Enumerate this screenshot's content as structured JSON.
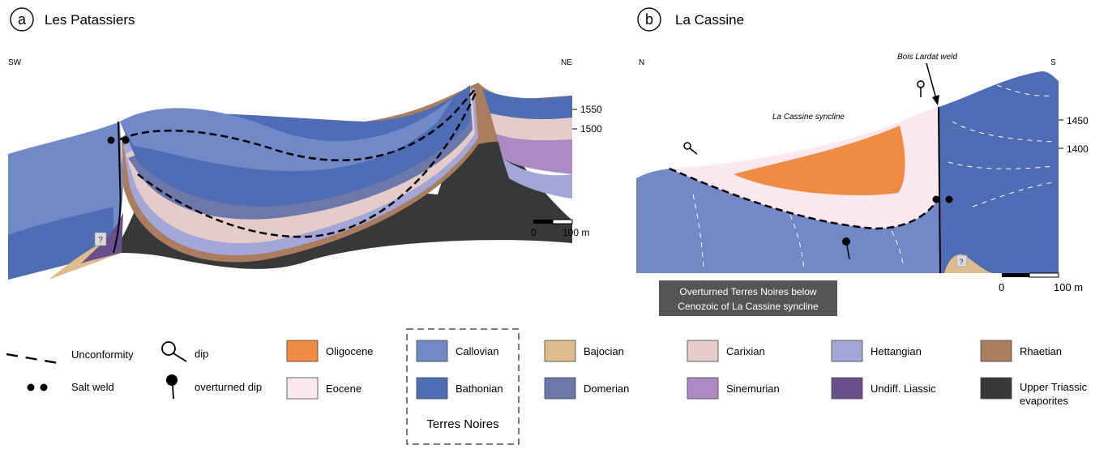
{
  "panel_a": {
    "letter": "a",
    "title": "Les Patassiers",
    "dir_left": "SW",
    "dir_right": "NE",
    "elev_1": "1550",
    "elev_2": "1500",
    "scale_zero": "0",
    "scale_len": "100 m",
    "question": "?"
  },
  "panel_b": {
    "letter": "b",
    "title": "La Cassine",
    "dir_left": "N",
    "dir_right": "S",
    "weld_label": "Bois Lardat weld",
    "syncline_label": "La Cassine syncline",
    "elev_1": "1450",
    "elev_2": "1400",
    "scale_zero": "0",
    "scale_len": "100 m",
    "question": "?",
    "callout_line1": "Overturned Terres Noires below",
    "callout_line2": "Cenozoic of La Cassine syncline"
  },
  "legend": {
    "symbols": {
      "unconformity": "Unconformity",
      "salt_weld": "Salt weld",
      "dip": "dip",
      "overturned_dip": "overturned dip"
    },
    "units": [
      {
        "key": "oligocene",
        "label": "Oligocene",
        "color": "#f08b44"
      },
      {
        "key": "eocene",
        "label": "Eocene",
        "color": "#fbe9ef"
      },
      {
        "key": "callovian",
        "label": "Callovian",
        "color": "#7289c8"
      },
      {
        "key": "bathonian",
        "label": "Bathonian",
        "color": "#4f6db4"
      },
      {
        "key": "bajocian",
        "label": "Bajocian",
        "color": "#dfbc8d"
      },
      {
        "key": "domerian",
        "label": "Domerian",
        "color": "#6d78aa"
      },
      {
        "key": "carixian",
        "label": "Carixian",
        "color": "#e6cbcb"
      },
      {
        "key": "sinemurian",
        "label": "Sinemurian",
        "color": "#ae8ac4"
      },
      {
        "key": "hettangian",
        "label": "Hettangian",
        "color": "#a3a7d7"
      },
      {
        "key": "undiff_liassic",
        "label": "Undiff. Liassic",
        "color": "#6b4f8d"
      },
      {
        "key": "rhaetian",
        "label": "Rhaetian",
        "color": "#a97d5e"
      },
      {
        "key": "upper_triassic_1",
        "label": "Upper Triassic",
        "color": "#383838"
      },
      {
        "key": "upper_triassic_2",
        "label": "evaporites",
        "color": "#383838"
      }
    ],
    "group_label": "Terres Noires"
  }
}
